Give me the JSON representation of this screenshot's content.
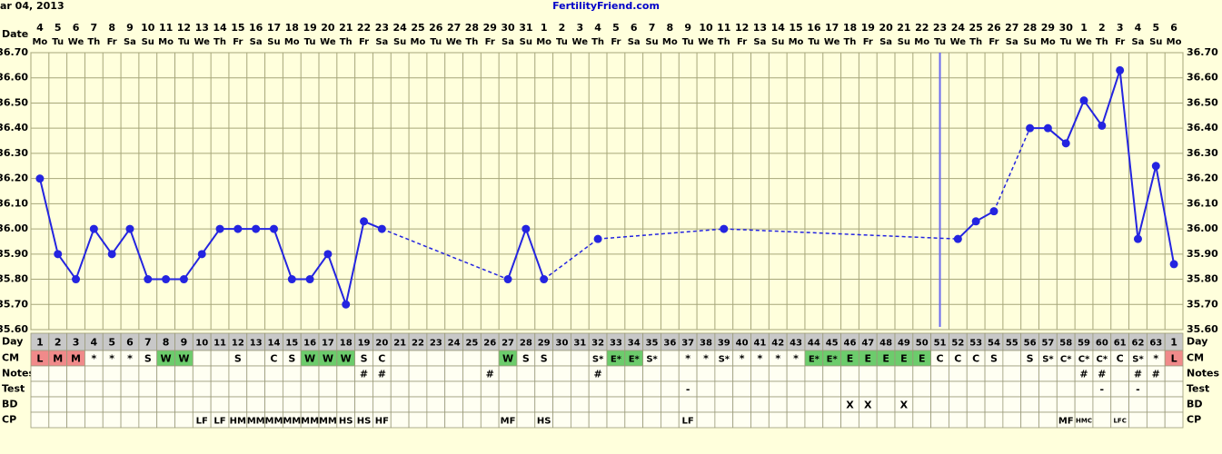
{
  "chart_data": {
    "type": "line",
    "title": "FertilityFriend.com",
    "date_text": "ar 04, 2013",
    "date_header": "Date",
    "categories": [
      4,
      5,
      6,
      7,
      8,
      9,
      10,
      11,
      12,
      13,
      14,
      15,
      16,
      17,
      18,
      19,
      20,
      21,
      22,
      23,
      24,
      25,
      26,
      27,
      28,
      29,
      30,
      31,
      1,
      2,
      3,
      4,
      5,
      6,
      7,
      8,
      9,
      10,
      11,
      12,
      13,
      14,
      15,
      16,
      17,
      18,
      19,
      20,
      21,
      22,
      23,
      24,
      25,
      26,
      27,
      28,
      29,
      30,
      1,
      2,
      3,
      4,
      5,
      6
    ],
    "weekdays": [
      "Mo",
      "Tu",
      "We",
      "Th",
      "Fr",
      "Sa",
      "Su",
      "Mo",
      "Tu",
      "We",
      "Th",
      "Fr",
      "Sa",
      "Su",
      "Mo",
      "Tu",
      "We",
      "Th",
      "Fr",
      "Sa",
      "Su",
      "Mo",
      "Tu",
      "We",
      "Th",
      "Fr",
      "Sa",
      "Su",
      "Mo",
      "Tu",
      "We",
      "Th",
      "Fr",
      "Sa",
      "Su",
      "Mo",
      "Tu",
      "We",
      "Th",
      "Fr",
      "Sa",
      "Su",
      "Mo",
      "Tu",
      "We",
      "Th",
      "Fr",
      "Sa",
      "Su",
      "Mo",
      "Tu",
      "We",
      "Th",
      "Fr",
      "Sa",
      "Su",
      "Mo",
      "Tu",
      "We",
      "Th",
      "Fr",
      "Sa",
      "Su",
      "Mo"
    ],
    "values": [
      36.2,
      35.9,
      35.8,
      36.0,
      35.9,
      36.0,
      35.8,
      35.8,
      35.8,
      35.9,
      36.0,
      36.0,
      36.0,
      36.0,
      35.8,
      35.8,
      35.9,
      35.7,
      36.03,
      36.0,
      null,
      null,
      null,
      null,
      null,
      null,
      35.8,
      36.0,
      35.8,
      null,
      null,
      35.96,
      null,
      null,
      null,
      null,
      null,
      null,
      36.0,
      null,
      null,
      null,
      null,
      null,
      null,
      null,
      null,
      null,
      null,
      null,
      null,
      35.96,
      36.03,
      36.07,
      null,
      36.4,
      36.4,
      36.34,
      36.51,
      36.41,
      36.63,
      35.96,
      36.25,
      35.86
    ],
    "color": "#2424e0",
    "vline_day": 51,
    "vline_color": "#6a6af0",
    "ylim": [
      35.6,
      36.7
    ],
    "yticks": [
      {
        "value": 35.6,
        "label": "35.60"
      },
      {
        "value": 35.7,
        "label": "35.70"
      },
      {
        "value": 35.8,
        "label": "35.80"
      },
      {
        "value": 35.9,
        "label": "35.90"
      },
      {
        "value": 36.0,
        "label": "36.00"
      },
      {
        "value": 36.1,
        "label": "36.10"
      },
      {
        "value": 36.2,
        "label": "36.20"
      },
      {
        "value": 36.3,
        "label": "36.30"
      },
      {
        "value": 36.4,
        "label": "36.40"
      },
      {
        "value": 36.5,
        "label": "36.50"
      },
      {
        "value": 36.6,
        "label": "36.60"
      },
      {
        "value": 36.7,
        "label": "36.70"
      }
    ],
    "grid": true,
    "cm_colors": {
      "L": "#f08a8a",
      "M": "#f08a8a",
      "W": "#6ccc6c",
      "E": "#6ccc6c"
    },
    "rows": [
      {
        "label": "Day",
        "cells": [
          1,
          2,
          3,
          4,
          5,
          6,
          7,
          8,
          9,
          10,
          11,
          12,
          13,
          14,
          15,
          16,
          17,
          18,
          19,
          20,
          21,
          22,
          23,
          24,
          25,
          26,
          27,
          28,
          29,
          30,
          31,
          32,
          33,
          34,
          35,
          36,
          37,
          38,
          39,
          40,
          41,
          42,
          43,
          44,
          45,
          46,
          47,
          48,
          49,
          50,
          51,
          52,
          53,
          54,
          55,
          56,
          57,
          58,
          59,
          60,
          61,
          62,
          63,
          1
        ]
      },
      {
        "label": "CM",
        "cells": [
          "L",
          "M",
          "M",
          "*",
          "*",
          "*",
          "S",
          "W",
          "W",
          null,
          null,
          "S",
          null,
          "C",
          "S",
          "W",
          "W",
          "W",
          "S",
          "C",
          null,
          null,
          null,
          null,
          null,
          null,
          "W",
          "S",
          "S",
          null,
          null,
          "S*",
          "E*",
          "E*",
          "S*",
          null,
          "*",
          "*",
          "S*",
          "*",
          "*",
          "*",
          "*",
          "E*",
          "E*",
          "E",
          "E",
          "E",
          "E",
          "E",
          "C",
          "C",
          "C",
          "S",
          null,
          "S",
          "S*",
          "C*",
          "C*",
          "C*",
          "C",
          "S*",
          "*",
          "L"
        ]
      },
      {
        "label": "Notes",
        "cells": [
          null,
          null,
          null,
          null,
          null,
          null,
          null,
          null,
          null,
          null,
          null,
          null,
          null,
          null,
          null,
          null,
          null,
          null,
          "#",
          "#",
          null,
          null,
          null,
          null,
          null,
          "#",
          null,
          null,
          null,
          null,
          null,
          "#",
          null,
          null,
          null,
          null,
          null,
          null,
          null,
          null,
          null,
          null,
          null,
          null,
          null,
          null,
          null,
          null,
          null,
          null,
          null,
          null,
          null,
          null,
          null,
          null,
          null,
          null,
          "#",
          "#",
          null,
          "#",
          "#",
          null
        ]
      },
      {
        "label": "Test",
        "cells": [
          null,
          null,
          null,
          null,
          null,
          null,
          null,
          null,
          null,
          null,
          null,
          null,
          null,
          null,
          null,
          null,
          null,
          null,
          null,
          null,
          null,
          null,
          null,
          null,
          null,
          null,
          null,
          null,
          null,
          null,
          null,
          null,
          null,
          null,
          null,
          null,
          "-",
          null,
          null,
          null,
          null,
          null,
          null,
          null,
          null,
          null,
          null,
          null,
          null,
          null,
          null,
          null,
          null,
          null,
          null,
          null,
          null,
          null,
          null,
          "-",
          null,
          "-",
          null,
          null
        ]
      },
      {
        "label": "BD",
        "cells": [
          null,
          null,
          null,
          null,
          null,
          null,
          null,
          null,
          null,
          null,
          null,
          null,
          null,
          null,
          null,
          null,
          null,
          null,
          null,
          null,
          null,
          null,
          null,
          null,
          null,
          null,
          null,
          null,
          null,
          null,
          null,
          null,
          null,
          null,
          null,
          null,
          null,
          null,
          null,
          null,
          null,
          null,
          null,
          null,
          null,
          "X",
          "X",
          null,
          "X",
          null,
          null,
          null,
          null,
          null,
          null,
          null,
          null,
          null,
          null,
          null,
          null,
          null,
          null,
          null
        ]
      },
      {
        "label": "CP",
        "cells": [
          null,
          null,
          null,
          null,
          null,
          null,
          null,
          null,
          null,
          "LF",
          "LF",
          "HM",
          "MM",
          "MM",
          "MM",
          "MM",
          "MM",
          "HS",
          "HS",
          "HF",
          null,
          null,
          null,
          null,
          null,
          null,
          "MF",
          null,
          "HS",
          null,
          null,
          null,
          null,
          null,
          null,
          null,
          "LF",
          null,
          null,
          null,
          null,
          null,
          null,
          null,
          null,
          null,
          null,
          null,
          null,
          null,
          null,
          null,
          null,
          null,
          null,
          null,
          null,
          "MF",
          "HMC",
          null,
          "LFC",
          null,
          null,
          null
        ]
      }
    ]
  }
}
